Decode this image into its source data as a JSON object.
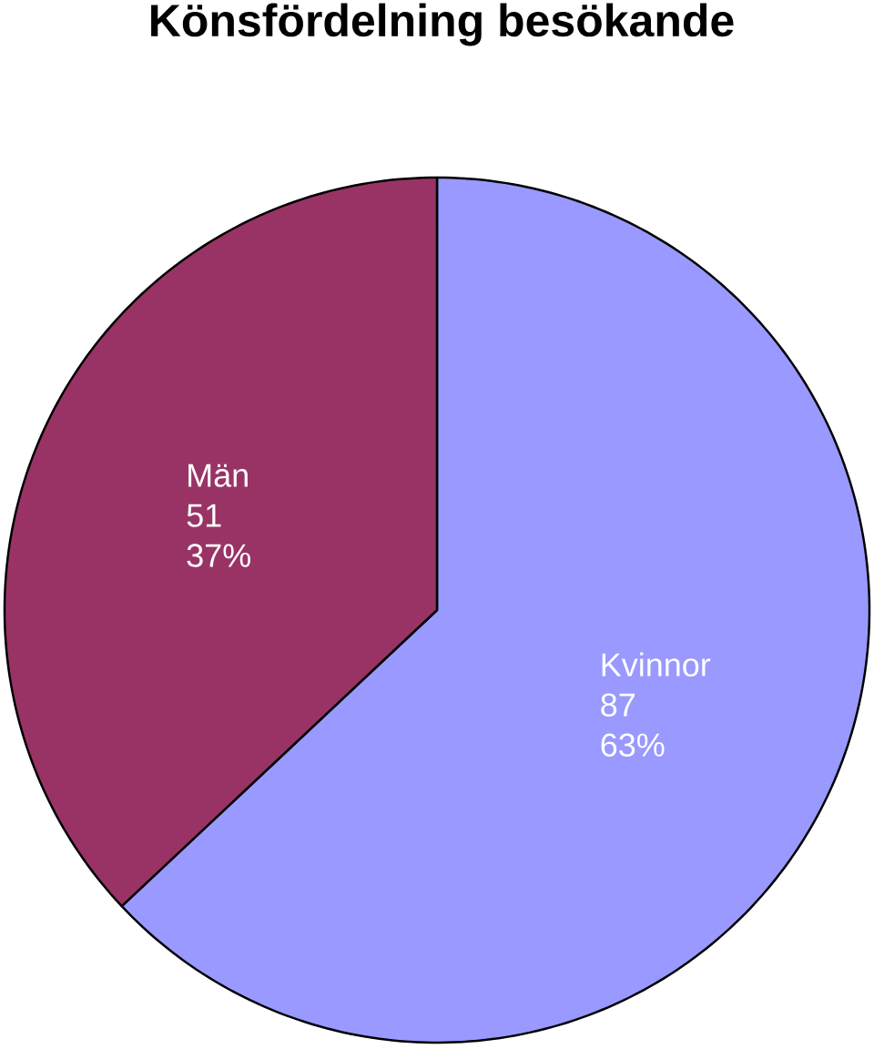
{
  "chart_data": {
    "type": "pie",
    "title": "Könsfördelning besökande",
    "categories": [
      "Kvinnor",
      "Män"
    ],
    "values": [
      63,
      37
    ],
    "annotations": [
      "87",
      "51"
    ],
    "colors": [
      "#9999ff",
      "#993366"
    ],
    "value_labels": [
      "63%",
      "37%"
    ]
  }
}
